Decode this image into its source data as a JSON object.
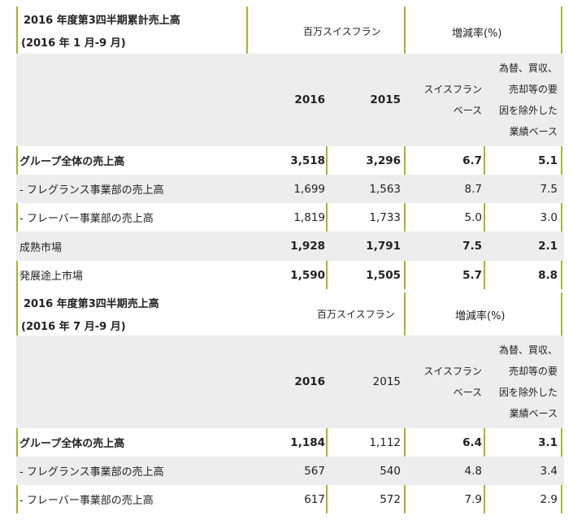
{
  "section1": {
    "title_line1": "2016 年度第3四半期累計売上高",
    "title_line2": "(2016 年 1 月-9 月)",
    "unit_label": "百万スイスフラン",
    "change_label": "増減率(%)",
    "col_2016": "2016",
    "col_2015": "2015",
    "col_chf_line1": "スイスフラン",
    "col_chf_line2": "ベース",
    "col_lfl_lines": [
      "為替、買収、",
      "売却等の要",
      "因を除外した",
      "業績ベース"
    ],
    "rows": [
      {
        "label": "グループ全体の売上高",
        "v2016": "3,518",
        "v2015": "3,296",
        "chf": "6.7",
        "lfl": "5.1"
      },
      {
        "label": "- フレグランス事業部の売上高",
        "v2016": "1,699",
        "v2015": "1,563",
        "chf": "8.7",
        "lfl": "7.5"
      },
      {
        "label": "- フレーバー事業部の売上高",
        "v2016": "1,819",
        "v2015": "1,733",
        "chf": "5.0",
        "lfl": "3.0"
      },
      {
        "label": "成熟市場",
        "v2016": "1,928",
        "v2015": "1,791",
        "chf": "7.5",
        "lfl": "2.1"
      },
      {
        "label": "発展途上市場",
        "v2016": "1,590",
        "v2015": "1,505",
        "chf": "5.7",
        "lfl": "8.8"
      }
    ]
  },
  "section2": {
    "title_line1": "2016 年度第3四半期売上高",
    "title_line2": "(2016 年 7 月-9 月)",
    "unit_label": "百万スイスフラン",
    "change_label": "増減率(%)",
    "col_2016": "2016",
    "col_2015": "2015",
    "col_chf_line1": "スイスフラン",
    "col_chf_line2": "ベース",
    "col_lfl_lines": [
      "為替、買収、",
      "売却等の要",
      "因を除外した",
      "業績ベース"
    ],
    "rows": [
      {
        "label": "グループ全体の売上高",
        "v2016": "1,184",
        "v2015": "1,112",
        "chf": "6.4",
        "lfl": "3.1"
      },
      {
        "label": "- フレグランス事業部の売上高",
        "v2016": "567",
        "v2015": "540",
        "chf": "4.8",
        "lfl": "3.4"
      },
      {
        "label": "- フレーバー事業部の売上高",
        "v2016": "617",
        "v2015": "572",
        "chf": "7.9",
        "lfl": "2.9"
      }
    ]
  }
}
